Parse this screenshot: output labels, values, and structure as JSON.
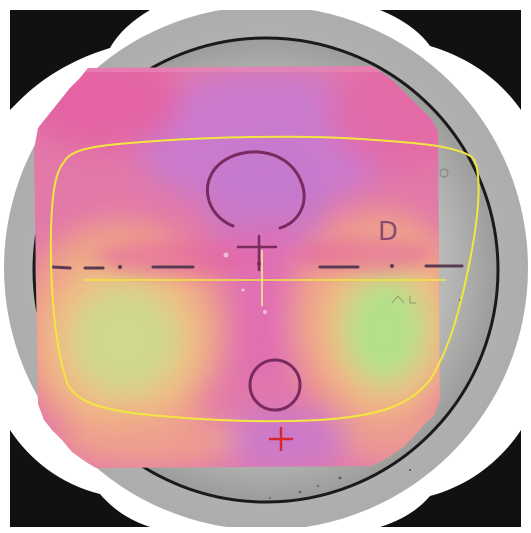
{
  "lens_markings": {
    "reference_letter": "D",
    "reference_letter_color": "#7a3c6a",
    "marking_ink_color": "#7a2a5e",
    "fitting_cross_color": "#d8262e"
  },
  "frame_outline_color": "#f2e640",
  "map_colors": {
    "magenta": "#e06aa6",
    "violet": "#c77bd2",
    "salmon": "#eea08a",
    "orange_yellow": "#f0bd84",
    "yellow_green": "#c6d98a",
    "lime": "#b4e08a"
  }
}
